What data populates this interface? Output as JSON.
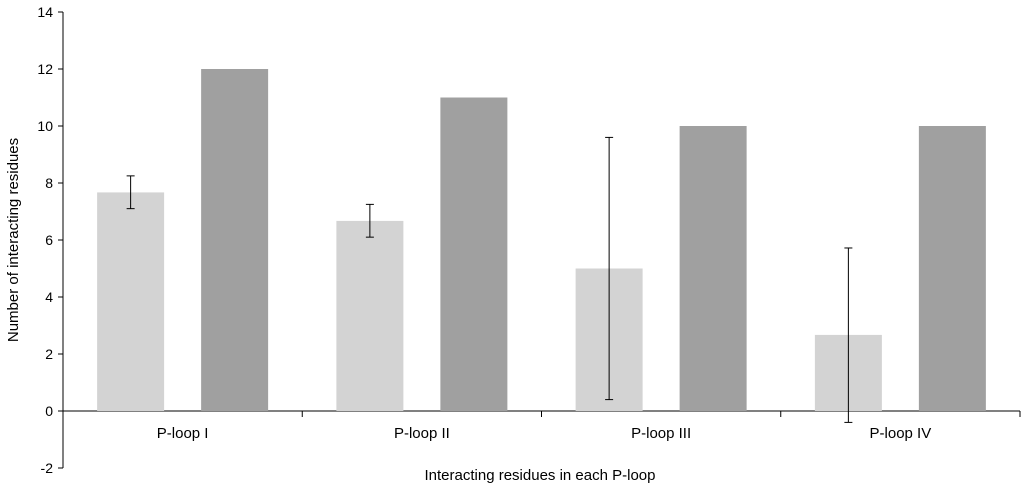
{
  "chart_data": {
    "type": "bar",
    "title": "",
    "xlabel": "Interacting residues in each P-loop",
    "ylabel": "Number of interacting residues",
    "ylim": [
      -2,
      14
    ],
    "yticks": [
      -2,
      0,
      2,
      4,
      6,
      8,
      10,
      12,
      14
    ],
    "grid": false,
    "legend": "none",
    "categories": [
      "P-loop I",
      "P-loop II",
      "P-loop III",
      "P-loop IV"
    ],
    "series": [
      {
        "color": "#d3d3d3",
        "values": [
          7.67,
          6.67,
          5.0,
          2.67
        ],
        "error_low": [
          7.1,
          6.1,
          0.4,
          -0.4
        ],
        "error_high": [
          8.25,
          7.25,
          9.6,
          5.72
        ]
      },
      {
        "color": "#a0a0a0",
        "values": [
          12,
          11,
          10,
          10
        ]
      }
    ]
  }
}
